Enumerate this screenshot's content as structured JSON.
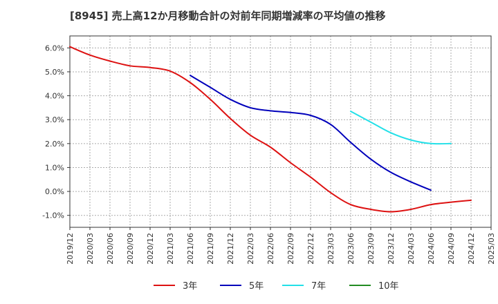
{
  "chart_data": {
    "type": "line",
    "title": "[8945]  売上高12か月移動合計の対前年同期増減率の平均値の推移",
    "xlabel": "",
    "ylabel": "",
    "ylim": [
      -0.015,
      0.065
    ],
    "yticks": [
      -0.01,
      0.0,
      0.01,
      0.02,
      0.03,
      0.04,
      0.05,
      0.06
    ],
    "ytick_labels": [
      "-1.0%",
      "0.0%",
      "1.0%",
      "2.0%",
      "3.0%",
      "4.0%",
      "5.0%",
      "6.0%"
    ],
    "xticks": [
      "2019/12",
      "2020/03",
      "2020/06",
      "2020/09",
      "2020/12",
      "2021/03",
      "2021/06",
      "2021/09",
      "2021/12",
      "2022/03",
      "2022/06",
      "2022/09",
      "2022/12",
      "2023/03",
      "2023/06",
      "2023/09",
      "2023/12",
      "2024/03",
      "2024/06",
      "2024/09",
      "2024/12",
      "2025/03"
    ],
    "grid": true,
    "legend_placement": "bottom",
    "series": [
      {
        "name": "3年",
        "color": "#dd1111",
        "start_index": 0,
        "values": [
          0.0605,
          0.057,
          0.0545,
          0.0525,
          0.0518,
          0.0503,
          0.0455,
          0.0385,
          0.0305,
          0.0235,
          0.0185,
          0.012,
          0.006,
          -0.0005,
          -0.0055,
          -0.0075,
          -0.0085,
          -0.0075,
          -0.0055,
          -0.0045,
          -0.0037
        ]
      },
      {
        "name": "5年",
        "color": "#0000bb",
        "start_index": 6,
        "values": [
          0.0485,
          0.0435,
          0.0385,
          0.035,
          0.0337,
          0.033,
          0.0318,
          0.028,
          0.0205,
          0.0135,
          0.008,
          0.004,
          0.0005
        ]
      },
      {
        "name": "7年",
        "color": "#22e0e8",
        "start_index": 14,
        "values": [
          0.0335,
          0.029,
          0.0245,
          0.0215,
          0.02,
          0.02
        ]
      },
      {
        "name": "10年",
        "color": "#228b22",
        "start_index": 0,
        "values": []
      }
    ]
  }
}
